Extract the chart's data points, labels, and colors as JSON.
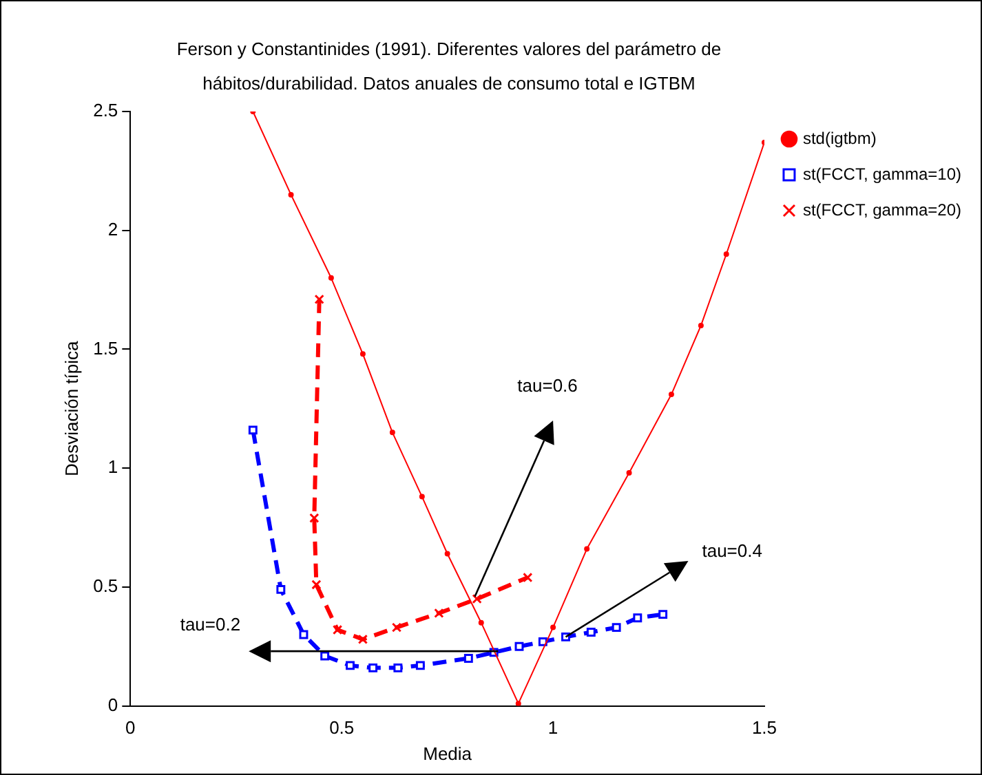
{
  "chart_data": {
    "type": "line",
    "title": "Ferson y Constantinides (1991). Diferentes valores del parámetro de hábitos/durabilidad. Datos anuales de consumo total e IGTBM",
    "xlabel": "Media",
    "ylabel": "Desviación típica",
    "xlim": [
      0,
      1.5
    ],
    "xticks": [
      0,
      0.5,
      1,
      1.5
    ],
    "ylim": [
      0,
      2.5
    ],
    "yticks": [
      0,
      0.5,
      1,
      1.5,
      2,
      2.5
    ],
    "grid": false,
    "legend": "right",
    "series": [
      {
        "name": "std(igtbm)",
        "color": "#ff0000",
        "marker": "circle",
        "line_style": "solid",
        "x": [
          0.29,
          0.38,
          0.475,
          0.55,
          0.62,
          0.69,
          0.75,
          0.83,
          0.918,
          1.0,
          1.08,
          1.18,
          1.28,
          1.35,
          1.41,
          1.5
        ],
        "values": [
          2.5,
          2.15,
          1.8,
          1.48,
          1.15,
          0.88,
          0.64,
          0.35,
          0.01,
          0.33,
          0.66,
          0.98,
          1.31,
          1.6,
          1.9,
          2.37
        ]
      },
      {
        "name": "st(FCCT, gamma=10)",
        "color": "#0000ff",
        "marker": "square",
        "line_style": "dashed",
        "x": [
          0.29,
          0.356,
          0.41,
          0.46,
          0.52,
          0.574,
          0.633,
          0.686,
          0.8,
          0.86,
          0.92,
          0.976,
          1.03,
          1.09,
          1.15,
          1.2,
          1.26
        ],
        "values": [
          1.16,
          0.49,
          0.3,
          0.21,
          0.17,
          0.16,
          0.16,
          0.17,
          0.2,
          0.225,
          0.25,
          0.27,
          0.29,
          0.31,
          0.33,
          0.37,
          0.385
        ]
      },
      {
        "name": "st(FCCT, gamma=20)",
        "color": "#ff0000",
        "marker": "cross",
        "line_style": "dashed",
        "x": [
          0.447,
          0.435,
          0.44,
          0.49,
          0.55,
          0.63,
          0.73,
          0.82,
          0.94
        ],
        "values": [
          1.71,
          0.79,
          0.51,
          0.32,
          0.28,
          0.33,
          0.39,
          0.45,
          0.54
        ]
      }
    ],
    "annotations": [
      "tau=0.2",
      "tau=0.6",
      "tau=0.4"
    ]
  }
}
